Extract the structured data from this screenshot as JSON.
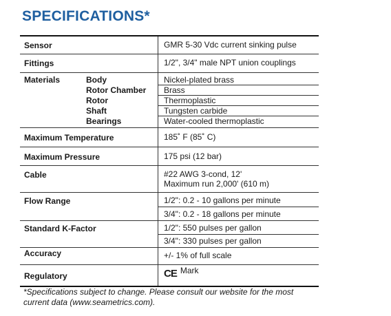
{
  "title": "SPECIFICATIONS*",
  "rows": {
    "sensor": {
      "label": "Sensor",
      "value": "GMR 5-30 Vdc current sinking pulse"
    },
    "fittings": {
      "label": "Fittings",
      "value": "1/2\", 3/4\" male NPT union couplings"
    },
    "materials": {
      "label": "Materials",
      "items": [
        {
          "part": "Body",
          "value": "Nickel-plated brass"
        },
        {
          "part": "Rotor Chamber",
          "value": "Brass"
        },
        {
          "part": "Rotor",
          "value": "Thermoplastic"
        },
        {
          "part": "Shaft",
          "value": "Tungsten carbide"
        },
        {
          "part": "Bearings",
          "value": "Water-cooled thermoplastic"
        }
      ]
    },
    "max_temp": {
      "label": "Maximum Temperature",
      "value": "185˚ F (85˚ C)"
    },
    "max_pressure": {
      "label": "Maximum Pressure",
      "value": "175 psi (12 bar)"
    },
    "cable": {
      "label": "Cable",
      "value_line1": "#22 AWG 3-cond, 12'",
      "value_line2": "Maximum run 2,000' (610 m)"
    },
    "flow_range": {
      "label": "Flow Range",
      "value_line1": "1/2\": 0.2 - 10 gallons per minute",
      "value_line2": "3/4\": 0.2 - 18 gallons per minute"
    },
    "k_factor": {
      "label": "Standard K-Factor",
      "value_line1": "1/2\": 550 pulses per gallon",
      "value_line2": "3/4\": 330 pulses per gallon"
    },
    "accuracy": {
      "label": "Accuracy",
      "value": "+/- 1% of full scale"
    },
    "regulatory": {
      "label": "Regulatory",
      "mark_symbol": "CE",
      "value": "Mark"
    }
  },
  "footnote": "*Specifications subject to change. Please consult our website for the most current data (www.seametrics.com)."
}
